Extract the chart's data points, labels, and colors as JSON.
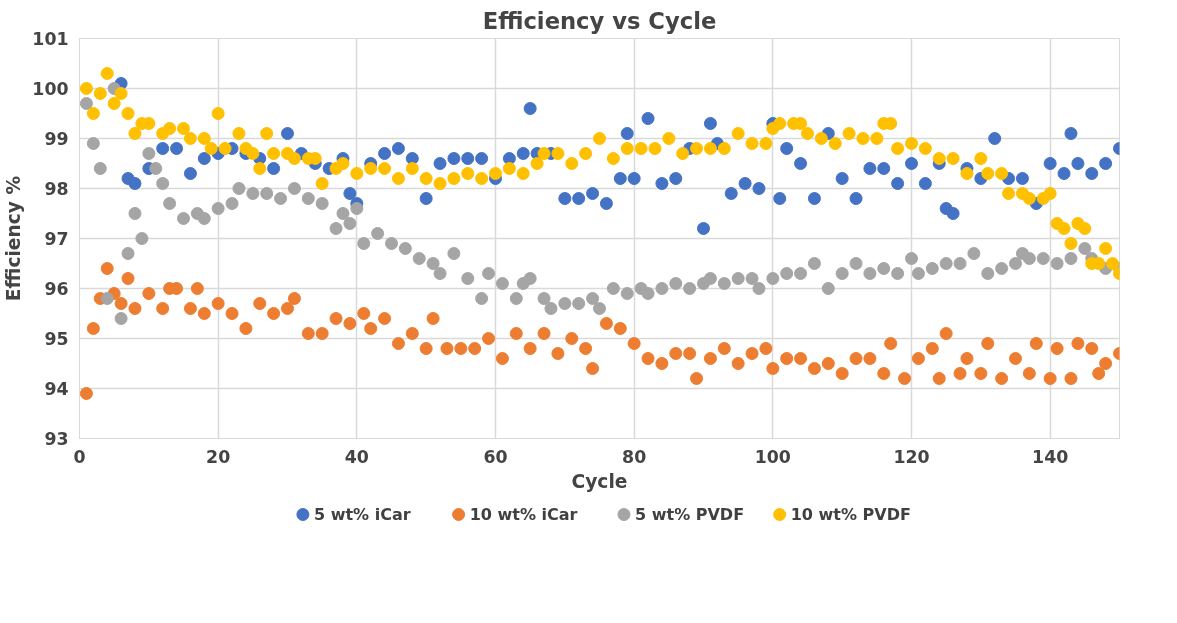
{
  "chart_data": {
    "type": "scatter",
    "title": "Efficiency vs Cycle",
    "xlabel": "Cycle",
    "ylabel": "Efficiency %",
    "xlim": [
      0,
      150
    ],
    "ylim": [
      93,
      101
    ],
    "xticks": [
      0,
      20,
      40,
      60,
      80,
      100,
      120,
      140
    ],
    "yticks": [
      93,
      94,
      95,
      96,
      97,
      98,
      99,
      100,
      101
    ],
    "grid": true,
    "legend": "bottom",
    "marker": "circle",
    "series": [
      {
        "name": "5 wt% iCar",
        "color": "#4472c4",
        "x": [
          6,
          7,
          8,
          10,
          12,
          14,
          16,
          18,
          20,
          22,
          24,
          26,
          28,
          30,
          32,
          34,
          36,
          38,
          39,
          40,
          42,
          44,
          46,
          48,
          50,
          52,
          54,
          56,
          58,
          60,
          62,
          64,
          65,
          66,
          68,
          70,
          72,
          74,
          76,
          78,
          79,
          80,
          82,
          84,
          86,
          88,
          90,
          91,
          92,
          94,
          96,
          98,
          100,
          101,
          102,
          104,
          106,
          108,
          110,
          112,
          114,
          116,
          118,
          120,
          122,
          124,
          125,
          126,
          128,
          130,
          132,
          134,
          136,
          138,
          140,
          142,
          143,
          144,
          146,
          148,
          150
        ],
        "values": [
          100.1,
          98.2,
          98.1,
          98.4,
          98.8,
          98.8,
          98.3,
          98.6,
          98.7,
          98.8,
          98.7,
          98.6,
          98.4,
          99.1,
          98.7,
          98.5,
          98.4,
          98.6,
          97.9,
          97.7,
          98.5,
          98.7,
          98.8,
          98.6,
          97.8,
          98.5,
          98.6,
          98.6,
          98.6,
          98.2,
          98.6,
          98.7,
          99.6,
          98.7,
          98.7,
          97.8,
          97.8,
          97.9,
          97.7,
          98.2,
          99.1,
          98.2,
          99.4,
          98.1,
          98.2,
          98.8,
          97.2,
          99.3,
          98.9,
          97.9,
          98.1,
          98.0,
          99.3,
          97.8,
          98.8,
          98.5,
          97.8,
          99.1,
          98.2,
          97.8,
          98.4,
          98.4,
          98.1,
          98.5,
          98.1,
          98.5,
          97.6,
          97.5,
          98.4,
          98.2,
          99.0,
          98.2,
          98.2,
          97.7,
          98.5,
          98.3,
          99.1,
          98.5,
          98.3,
          98.5,
          98.8
        ]
      },
      {
        "name": "10 wt% iCar",
        "color": "#ed7d31",
        "x": [
          1,
          2,
          3,
          4,
          5,
          6,
          7,
          8,
          10,
          12,
          13,
          14,
          16,
          17,
          18,
          20,
          22,
          24,
          26,
          28,
          30,
          31,
          33,
          35,
          37,
          39,
          41,
          42,
          44,
          46,
          48,
          50,
          51,
          53,
          55,
          57,
          59,
          61,
          63,
          65,
          67,
          69,
          71,
          73,
          74,
          76,
          78,
          80,
          82,
          84,
          86,
          88,
          89,
          91,
          93,
          95,
          97,
          99,
          100,
          102,
          104,
          106,
          108,
          110,
          112,
          114,
          116,
          117,
          119,
          121,
          123,
          124,
          125,
          127,
          128,
          130,
          131,
          133,
          135,
          137,
          138,
          140,
          141,
          143,
          144,
          146,
          147,
          148,
          150
        ],
        "values": [
          93.9,
          95.2,
          95.8,
          96.4,
          95.9,
          95.7,
          96.2,
          95.6,
          95.9,
          95.6,
          96.0,
          96.0,
          95.6,
          96.0,
          95.5,
          95.7,
          95.5,
          95.2,
          95.7,
          95.5,
          95.6,
          95.8,
          95.1,
          95.1,
          95.4,
          95.3,
          95.5,
          95.2,
          95.4,
          94.9,
          95.1,
          94.8,
          95.4,
          94.8,
          94.8,
          94.8,
          95.0,
          94.6,
          95.1,
          94.8,
          95.1,
          94.7,
          95.0,
          94.8,
          94.4,
          95.3,
          95.2,
          94.9,
          94.6,
          94.5,
          94.7,
          94.7,
          94.2,
          94.6,
          94.8,
          94.5,
          94.7,
          94.8,
          94.4,
          94.6,
          94.6,
          94.4,
          94.5,
          94.3,
          94.6,
          94.6,
          94.3,
          94.9,
          94.2,
          94.6,
          94.8,
          94.2,
          95.1,
          94.3,
          94.6,
          94.3,
          94.9,
          94.2,
          94.6,
          94.3,
          94.9,
          94.2,
          94.8,
          94.2,
          94.9,
          94.8,
          94.3,
          94.5,
          94.7
        ]
      },
      {
        "name": "5 wt% PVDF",
        "color": "#a5a5a5",
        "x": [
          1,
          2,
          3,
          4,
          5,
          6,
          7,
          8,
          9,
          10,
          11,
          12,
          13,
          15,
          17,
          18,
          20,
          22,
          23,
          25,
          27,
          29,
          31,
          33,
          35,
          37,
          38,
          39,
          40,
          41,
          43,
          45,
          47,
          49,
          51,
          52,
          54,
          56,
          58,
          59,
          61,
          63,
          64,
          65,
          67,
          68,
          70,
          72,
          74,
          75,
          77,
          79,
          81,
          82,
          84,
          86,
          88,
          90,
          91,
          93,
          95,
          97,
          98,
          100,
          102,
          104,
          106,
          108,
          110,
          112,
          114,
          116,
          118,
          120,
          121,
          123,
          125,
          127,
          129,
          131,
          133,
          135,
          136,
          137,
          139,
          141,
          143,
          145,
          146,
          148,
          150
        ],
        "values": [
          99.7,
          98.9,
          98.4,
          95.8,
          100.0,
          95.4,
          96.7,
          97.5,
          97.0,
          98.7,
          98.4,
          98.1,
          97.7,
          97.4,
          97.5,
          97.4,
          97.6,
          97.7,
          98.0,
          97.9,
          97.9,
          97.8,
          98.0,
          97.8,
          97.7,
          97.2,
          97.5,
          97.3,
          97.6,
          96.9,
          97.1,
          96.9,
          96.8,
          96.6,
          96.5,
          96.3,
          96.7,
          96.2,
          95.8,
          96.3,
          96.1,
          95.8,
          96.1,
          96.2,
          95.8,
          95.6,
          95.7,
          95.7,
          95.8,
          95.6,
          96.0,
          95.9,
          96.0,
          95.9,
          96.0,
          96.1,
          96.0,
          96.1,
          96.2,
          96.1,
          96.2,
          96.2,
          96.0,
          96.2,
          96.3,
          96.3,
          96.5,
          96.0,
          96.3,
          96.5,
          96.3,
          96.4,
          96.3,
          96.6,
          96.3,
          96.4,
          96.5,
          96.5,
          96.7,
          96.3,
          96.4,
          96.5,
          96.7,
          96.6,
          96.6,
          96.5,
          96.6,
          96.8,
          96.6,
          96.4,
          96.4
        ]
      },
      {
        "name": "10 wt% PVDF",
        "color": "#ffc000",
        "x": [
          1,
          2,
          3,
          4,
          5,
          6,
          7,
          8,
          9,
          10,
          12,
          13,
          15,
          16,
          18,
          19,
          20,
          21,
          23,
          24,
          25,
          26,
          27,
          28,
          30,
          31,
          33,
          34,
          35,
          37,
          38,
          40,
          42,
          44,
          46,
          48,
          50,
          52,
          54,
          56,
          58,
          60,
          62,
          64,
          66,
          67,
          69,
          71,
          73,
          75,
          77,
          79,
          81,
          83,
          85,
          87,
          89,
          91,
          93,
          95,
          97,
          99,
          100,
          101,
          103,
          104,
          105,
          107,
          109,
          111,
          113,
          115,
          116,
          117,
          118,
          120,
          122,
          124,
          126,
          128,
          130,
          131,
          133,
          134,
          136,
          137,
          139,
          140,
          141,
          142,
          143,
          144,
          145,
          146,
          147,
          148,
          149,
          150
        ],
        "values": [
          100.0,
          99.5,
          99.9,
          100.3,
          99.7,
          99.9,
          99.5,
          99.1,
          99.3,
          99.3,
          99.1,
          99.2,
          99.2,
          99.0,
          99.0,
          98.8,
          99.5,
          98.8,
          99.1,
          98.8,
          98.7,
          98.4,
          99.1,
          98.7,
          98.7,
          98.6,
          98.6,
          98.6,
          98.1,
          98.4,
          98.5,
          98.3,
          98.4,
          98.4,
          98.2,
          98.4,
          98.2,
          98.1,
          98.2,
          98.3,
          98.2,
          98.3,
          98.4,
          98.3,
          98.5,
          98.7,
          98.7,
          98.5,
          98.7,
          99.0,
          98.6,
          98.8,
          98.8,
          98.8,
          99.0,
          98.7,
          98.8,
          98.8,
          98.8,
          99.1,
          98.9,
          98.9,
          99.2,
          99.3,
          99.3,
          99.3,
          99.1,
          99.0,
          98.9,
          99.1,
          99.0,
          99.0,
          99.3,
          99.3,
          98.8,
          98.9,
          98.8,
          98.6,
          98.6,
          98.3,
          98.6,
          98.3,
          98.3,
          97.9,
          97.9,
          97.8,
          97.8,
          97.9,
          97.3,
          97.2,
          96.9,
          97.3,
          97.2,
          96.5,
          96.5,
          96.8,
          96.5,
          96.3
        ]
      }
    ]
  }
}
